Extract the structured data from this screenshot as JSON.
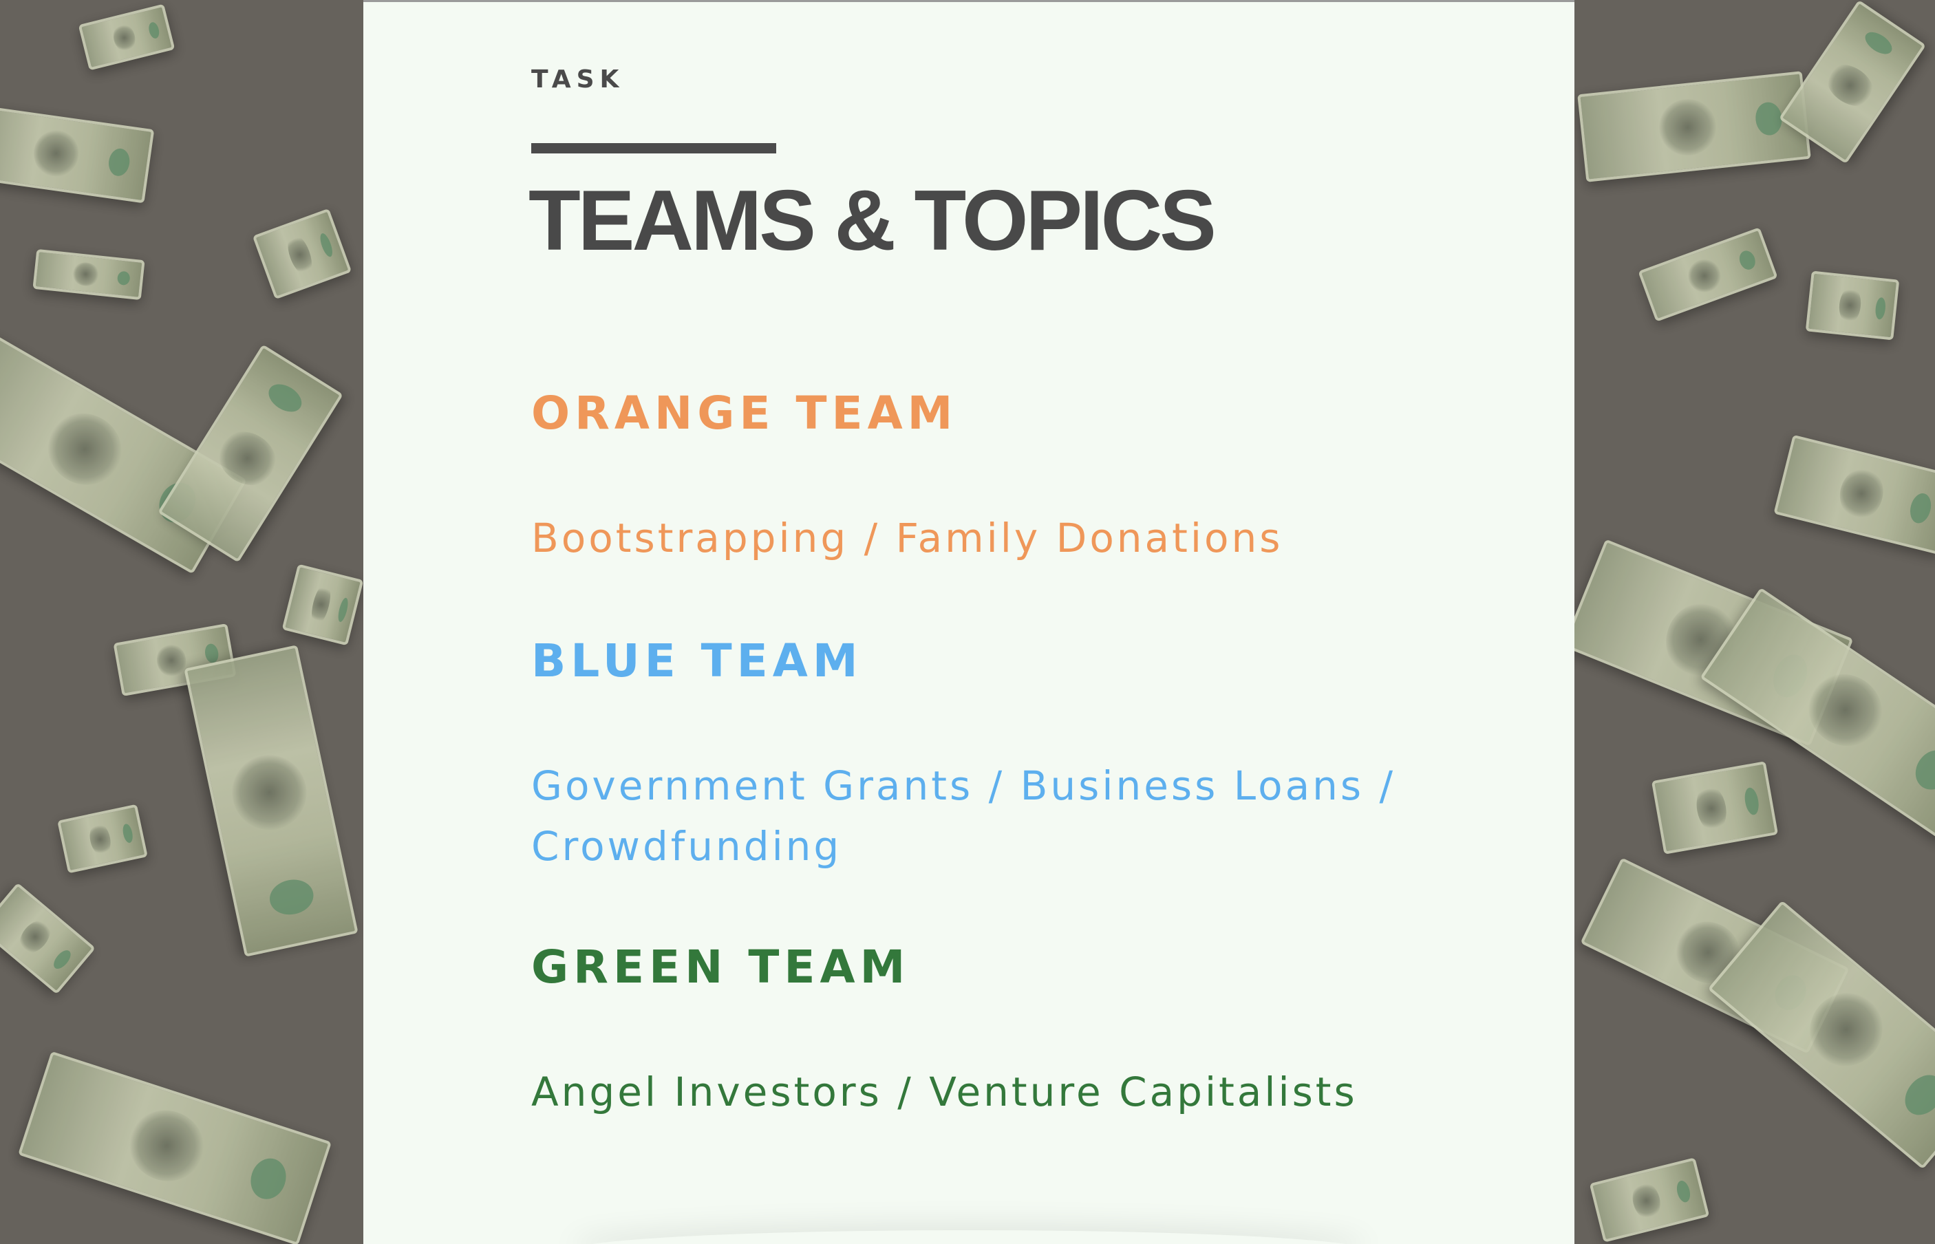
{
  "slide": {
    "eyebrow": "TASK",
    "title": "TEAMS & TOPICS",
    "teams": [
      {
        "name": "ORANGE TEAM",
        "topic": "Bootstrapping / Family Donations",
        "color": "#ef9759"
      },
      {
        "name": "BLUE TEAM",
        "topic": "Government Grants / Business Loans / Crowdfunding",
        "color": "#5dafee"
      },
      {
        "name": "GREEN TEAM",
        "topic": "Angel Investors / Venture Capitalists",
        "color": "#33783b"
      }
    ]
  },
  "background": {
    "description_icon": "falling-dollar-bills",
    "color": "#66625c"
  }
}
